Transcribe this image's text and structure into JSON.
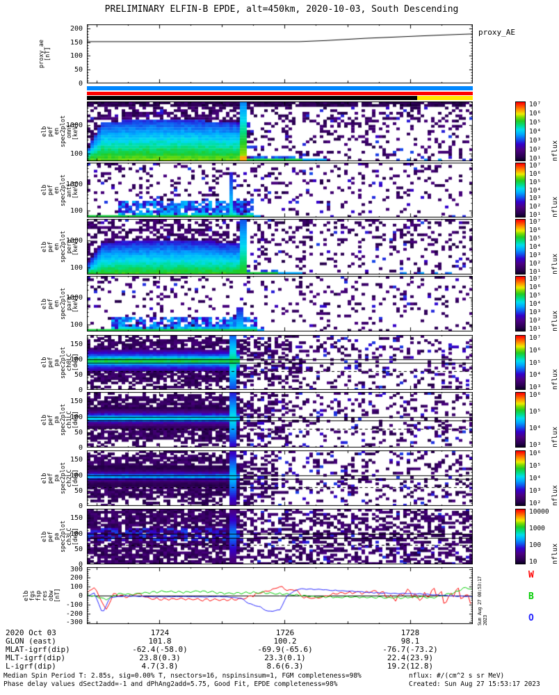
{
  "header": {
    "title": "PRELIMINARY ELFIN-B EPDE, alt=450km, 2020-10-03, South Descending"
  },
  "legend": [
    {
      "label": "W",
      "color": "#ff0000"
    },
    {
      "label": "B",
      "color": "#00cc00"
    },
    {
      "label": "O",
      "color": "#2222ff"
    }
  ],
  "side_stamp": "Sun Aug 27 08:53:17 2023",
  "ephemeris": {
    "date_label": "2020 Oct 03",
    "row_labels": [
      "GLON (east)",
      "MLAT-igrf(dip)",
      "MLT-igrf(dip)",
      "L-igrf(dip)"
    ],
    "columns": [
      {
        "time": "1724",
        "values": [
          "101.8",
          "-62.4(-58.0)",
          "23.8(0.3)",
          "4.7(3.8)"
        ]
      },
      {
        "time": "1726",
        "values": [
          "100.2",
          "-69.9(-65.6)",
          "23.3(0.1)",
          "8.6(6.3)"
        ]
      },
      {
        "time": "1728",
        "values": [
          "98.1",
          "-76.7(-73.2)",
          "22.4(23.9)",
          "19.2(12.8)"
        ]
      }
    ]
  },
  "footer": {
    "left_lines": [
      "Median Spin Period T: 2.85s, sig=0.00% T, nsectors=16, nspinsinsum=1, FGM completeness=98%",
      "Phase delay values dSect2add=-1 and dPhAng2add=5.75, Good Fit, EPDE completeness=98%"
    ],
    "right_lines": [
      "nflux: #/(cm^2 s sr MeV)",
      "Created: Sun Aug 27 15:53:17 2023"
    ]
  },
  "chart_data": {
    "xaxis": {
      "range_hhmm": [
        1722.85,
        1729.0
      ],
      "major_ticks": [
        1724,
        1726,
        1728
      ],
      "minor_step_min": 0.5
    },
    "event_time_frac_energy": 0.405,
    "event_time_frac_pitch": 0.378,
    "panels": {
      "proxy": {
        "type": "line",
        "ylabel_lines": [
          "proxy_ae",
          "[nT]"
        ],
        "right_label": "proxy_AE",
        "ylim": [
          0,
          215
        ],
        "yticks": [
          0,
          50,
          100,
          150,
          200
        ],
        "points": [
          [
            0,
            152
          ],
          [
            0.55,
            152
          ],
          [
            0.62,
            156
          ],
          [
            0.72,
            164
          ],
          [
            0.82,
            170
          ],
          [
            0.92,
            176
          ],
          [
            1,
            180
          ]
        ]
      },
      "flags": {
        "type": "flag_bars",
        "bars": [
          {
            "name": "bar-blue",
            "color": "#0087ff"
          },
          {
            "name": "bar-red",
            "color": "#ff0000"
          },
          {
            "name": "bar-black",
            "color": "#000000",
            "tail_color": "#ffe800",
            "tail_from": 0.855
          }
        ]
      },
      "omni": {
        "type": "energy_spectrogram",
        "ylabel_lines": [
          "elb",
          "pef",
          "en",
          "spec2plot",
          "omni",
          "[keV]"
        ],
        "ylim_kev": [
          55,
          6500
        ],
        "yticks": [
          100,
          1000
        ],
        "cb_ticks": [
          "10⁷",
          "10⁶",
          "10⁵",
          "10⁴",
          "10³",
          "10²",
          "10¹"
        ],
        "cb_label": "nflux",
        "params": {
          "seed": 11,
          "active_end": 0.405,
          "band_top": 0.62,
          "base": 0.74,
          "event_t": 0.405,
          "event_v": 0.8,
          "event_h": 1.0,
          "event_hot": true,
          "speckle": 0.24,
          "bot1": 0.56,
          "bot2": 0.62,
          "bot_sparse": true,
          "dark_top": true
        }
      },
      "anti": {
        "type": "energy_spectrogram",
        "ylabel_lines": [
          "elb",
          "pef",
          "en",
          "spec2plot",
          "anti",
          "[keV]"
        ],
        "ylim_kev": [
          55,
          6500
        ],
        "yticks": [
          100,
          1000
        ],
        "cb_ticks": [
          "10⁷",
          "10⁶",
          "10⁵",
          "10⁴",
          "10³",
          "10²",
          "10¹"
        ],
        "cb_label": "nflux",
        "params": {
          "seed": 23,
          "cluster": [
            0.08,
            0.43,
            0.3
          ],
          "event_t": 0.375,
          "event_v": 0.58,
          "event_h": 0.82,
          "speckle": 0.14,
          "bot1": 0.43,
          "bot2": 0.45
        }
      },
      "perp": {
        "type": "energy_spectrogram",
        "ylabel_lines": [
          "elb",
          "pef",
          "en",
          "spec2plot",
          "perp",
          "[keV]"
        ],
        "ylim_kev": [
          55,
          6500
        ],
        "yticks": [
          100,
          1000
        ],
        "cb_ticks": [
          "10⁷",
          "10⁶",
          "10⁵",
          "10⁴",
          "10³",
          "10²",
          "10¹"
        ],
        "cb_label": "nflux",
        "params": {
          "seed": 37,
          "active_end": 0.405,
          "band_top": 0.55,
          "base": 0.7,
          "event_t": 0.405,
          "event_v": 0.7,
          "event_h": 1.0,
          "speckle": 0.2,
          "bot1": 0.5,
          "bot2": 0.56,
          "bot_sparse": true
        }
      },
      "para": {
        "type": "energy_spectrogram",
        "ylabel_lines": [
          "elb",
          "pef",
          "en",
          "spec2plot",
          "para",
          "[keV]"
        ],
        "ylim_kev": [
          55,
          6500
        ],
        "yticks": [
          100,
          1000
        ],
        "cb_ticks": [
          "10⁷",
          "10⁶",
          "10⁵",
          "10⁴",
          "10³",
          "10²",
          "10¹"
        ],
        "cb_label": "nflux",
        "params": {
          "seed": 51,
          "cluster": [
            0.06,
            0.44,
            0.26
          ],
          "event_t": 0.395,
          "event_v": 0.55,
          "event_h": 0.45,
          "speckle": 0.13,
          "bot1": 0.44,
          "bot2": 0.46
        }
      },
      "ch0": {
        "type": "pitch_spectrogram",
        "ylabel_lines": [
          "elb",
          "pef",
          "pa",
          "spec2plot",
          "ch0LC",
          "[deg]"
        ],
        "ylim_deg": [
          0,
          180
        ],
        "yticks": [
          0,
          50,
          100,
          150
        ],
        "solid_lines_deg": [
          100,
          88
        ],
        "dashed_line_deg": 61,
        "cb_ticks": [
          "10⁷",
          "10⁶",
          "10⁵",
          "10⁴",
          "10³"
        ],
        "cb_label": "nflux",
        "params": {
          "seed": 67,
          "core": 0.7,
          "post_end": 0.56,
          "speckle": 0.22,
          "event_v": 0.62
        }
      },
      "ch1": {
        "type": "pitch_spectrogram",
        "ylabel_lines": [
          "elb",
          "pef",
          "pa",
          "spec2plot",
          "ch1LC",
          "[deg]"
        ],
        "ylim_deg": [
          0,
          180
        ],
        "yticks": [
          0,
          50,
          100,
          150
        ],
        "solid_lines_deg": [
          100,
          88
        ],
        "dashed_line_deg": 61,
        "cb_ticks": [
          "10⁶",
          "10⁵",
          "10⁴",
          "10³"
        ],
        "cb_label": "nflux",
        "params": {
          "seed": 79,
          "core": 0.55,
          "post_end": 0.52,
          "speckle": 0.2,
          "event_v": 0.55
        }
      },
      "ch2": {
        "type": "pitch_spectrogram",
        "ylabel_lines": [
          "elb",
          "pef",
          "pa",
          "spec2plot",
          "ch2LC",
          "[deg]"
        ],
        "ylim_deg": [
          0,
          180
        ],
        "yticks": [
          0,
          50,
          100,
          150
        ],
        "solid_lines_deg": [
          100,
          88
        ],
        "dashed_line_deg": 61,
        "cb_ticks": [
          "10⁶",
          "10⁵",
          "10⁴",
          "10³",
          "10²"
        ],
        "cb_label": "nflux",
        "params": {
          "seed": 91,
          "core": 0.47,
          "post_end": 0.5,
          "speckle": 0.2,
          "event_v": 0.5
        }
      },
      "ch3": {
        "type": "pitch_spectrogram",
        "ylabel_lines": [
          "elb",
          "pef",
          "pa",
          "spec2plot",
          "ch3LC",
          "[deg]"
        ],
        "ylim_deg": [
          0,
          180
        ],
        "yticks": [
          0,
          50,
          100,
          150
        ],
        "solid_lines_deg": [
          100,
          85
        ],
        "dashed_line_deg": 62,
        "cb_ticks": [
          "10000",
          "1000",
          "100",
          "10"
        ],
        "cb_label": "nflux",
        "params": {
          "seed": 103,
          "core": 0.27,
          "post_end": 0.4,
          "speckle": 0.42,
          "event_v": 0.42,
          "uniform": true
        }
      },
      "obw": {
        "type": "multi_line",
        "ylabel_lines": [
          "elb",
          "fgs",
          "fsp",
          "res",
          "obw",
          "[nT]"
        ],
        "ylim": [
          -320,
          320
        ],
        "yticks": [
          -300,
          -200,
          -100,
          0,
          100,
          200,
          300
        ],
        "series": [
          {
            "name": "W",
            "color": "#ff0000",
            "wiggle": 15,
            "points": [
              [
                0,
                30
              ],
              [
                0.02,
                95
              ],
              [
                0.035,
                -40
              ],
              [
                0.05,
                -160
              ],
              [
                0.07,
                20
              ],
              [
                0.1,
                -20
              ],
              [
                0.13,
                25
              ],
              [
                0.16,
                -30
              ],
              [
                0.2,
                -45
              ],
              [
                0.25,
                -40
              ],
              [
                0.3,
                -45
              ],
              [
                0.35,
                -50
              ],
              [
                0.4,
                -40
              ],
              [
                0.45,
                30
              ],
              [
                0.48,
                60
              ],
              [
                0.5,
                105
              ],
              [
                0.52,
                55
              ],
              [
                0.54,
                75
              ],
              [
                0.56,
                -20
              ],
              [
                0.6,
                -25
              ],
              [
                0.65,
                25
              ],
              [
                0.7,
                30
              ],
              [
                0.75,
                45
              ],
              [
                0.8,
                -40
              ],
              [
                0.83,
                55
              ],
              [
                0.86,
                -35
              ],
              [
                0.9,
                40
              ],
              [
                0.93,
                -60
              ],
              [
                0.96,
                45
              ],
              [
                1,
                -90
              ]
            ]
          },
          {
            "name": "B",
            "color": "#00cc00",
            "wiggle": 12,
            "points": [
              [
                0,
                10
              ],
              [
                0.05,
                -40
              ],
              [
                0.08,
                20
              ],
              [
                0.12,
                10
              ],
              [
                0.15,
                30
              ],
              [
                0.2,
                45
              ],
              [
                0.25,
                40
              ],
              [
                0.3,
                50
              ],
              [
                0.35,
                25
              ],
              [
                0.4,
                30
              ],
              [
                0.45,
                35
              ],
              [
                0.5,
                20
              ],
              [
                0.55,
                5
              ],
              [
                0.6,
                -15
              ],
              [
                0.65,
                -20
              ],
              [
                0.7,
                -15
              ],
              [
                0.75,
                -20
              ],
              [
                0.8,
                -25
              ],
              [
                0.85,
                -15
              ],
              [
                0.9,
                -20
              ],
              [
                0.95,
                30
              ],
              [
                0.98,
                95
              ],
              [
                1,
                70
              ]
            ]
          },
          {
            "name": "O",
            "color": "#2222ff",
            "wiggle": 4,
            "points": [
              [
                0,
                -10
              ],
              [
                0.02,
                30
              ],
              [
                0.04,
                -200
              ],
              [
                0.06,
                -20
              ],
              [
                0.1,
                -5
              ],
              [
                0.15,
                -10
              ],
              [
                0.2,
                -15
              ],
              [
                0.25,
                -10
              ],
              [
                0.3,
                -15
              ],
              [
                0.35,
                -10
              ],
              [
                0.4,
                -30
              ],
              [
                0.42,
                -90
              ],
              [
                0.45,
                -130
              ],
              [
                0.47,
                -180
              ],
              [
                0.5,
                -160
              ],
              [
                0.52,
                10
              ],
              [
                0.55,
                75
              ],
              [
                0.6,
                70
              ],
              [
                0.63,
                60
              ],
              [
                0.7,
                45
              ],
              [
                0.75,
                30
              ],
              [
                0.8,
                25
              ],
              [
                0.85,
                20
              ],
              [
                0.9,
                10
              ],
              [
                0.95,
                -5
              ],
              [
                1,
                -10
              ]
            ]
          }
        ]
      }
    }
  }
}
